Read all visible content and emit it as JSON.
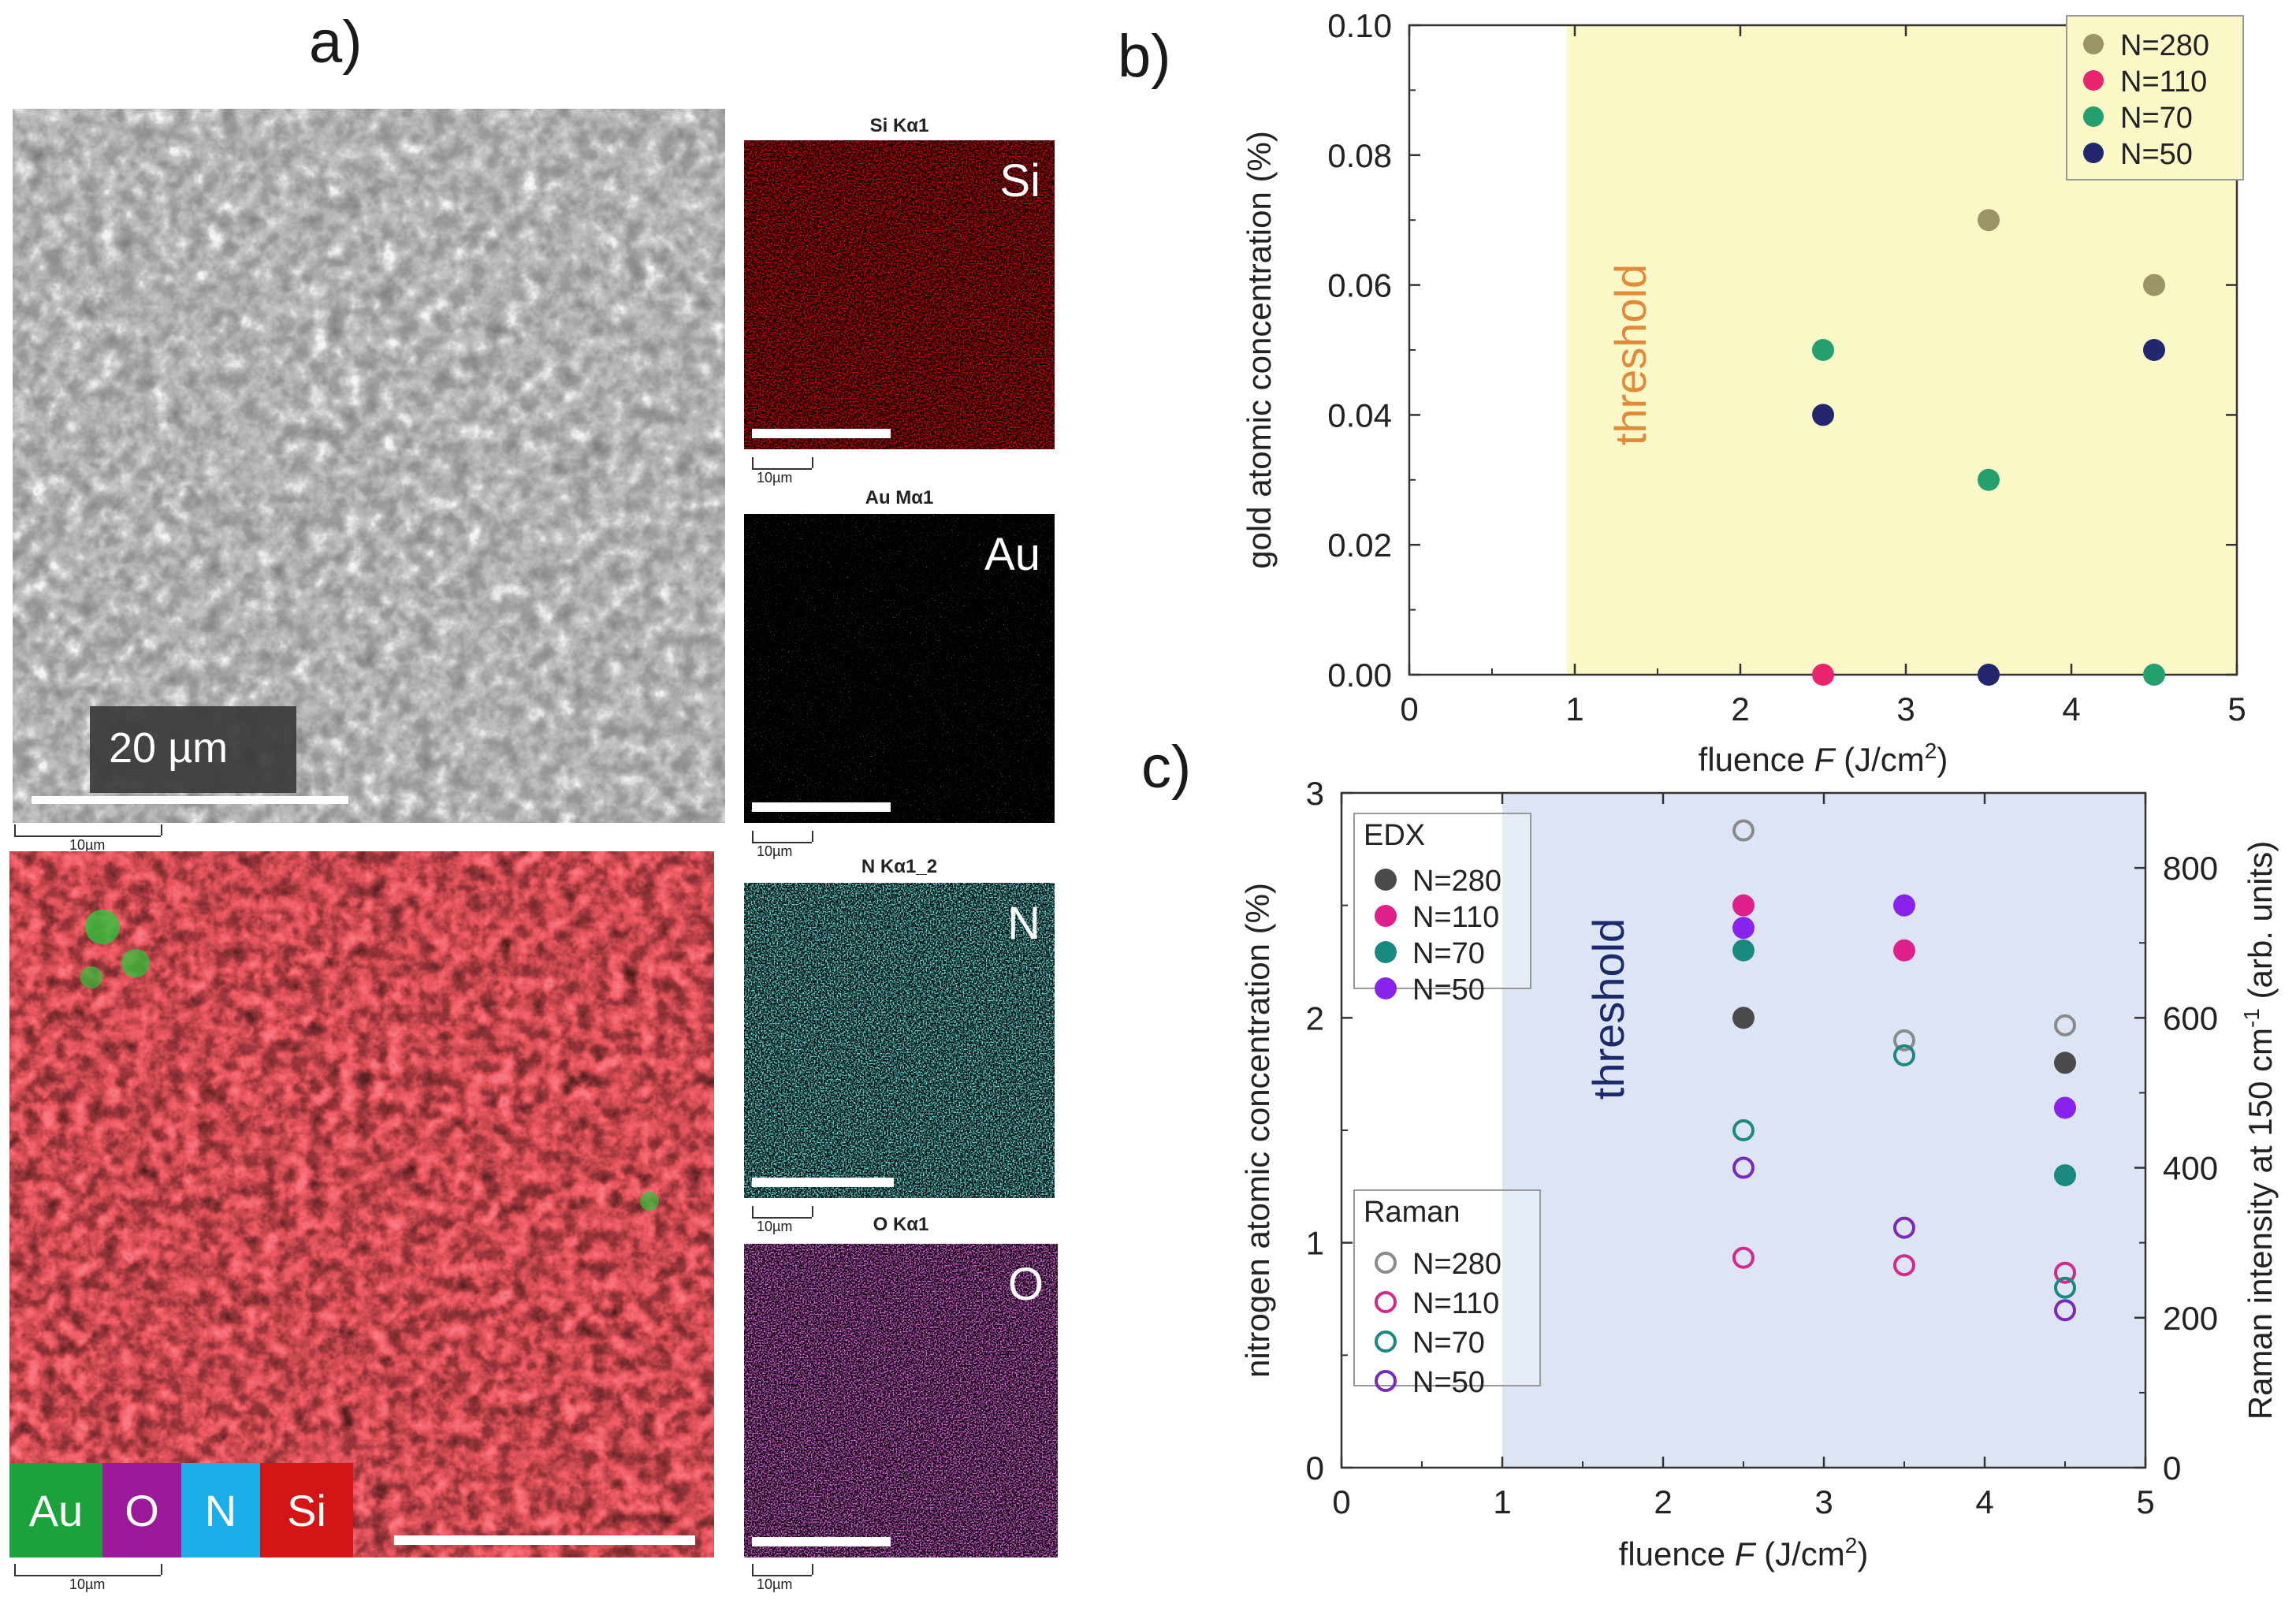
{
  "panels": {
    "a": "a)",
    "b": "b)",
    "c": "c)"
  },
  "sem": {
    "scale_label": "20 µm",
    "small_scale": "10µm"
  },
  "edx_maps": [
    {
      "title": "Si Kα1",
      "element": "Si",
      "color": "#d40000",
      "scale": "10µm"
    },
    {
      "title": "Au Mα1",
      "element": "Au",
      "color": "#22cc22",
      "scale": "10µm"
    },
    {
      "title": "N Kα1_2",
      "element": "N",
      "color": "#22cccc",
      "scale": "10µm"
    },
    {
      "title": "O Kα1",
      "element": "O",
      "color": "#cc22cc",
      "scale": "10µm"
    }
  ],
  "overlay": {
    "small_scale": "10µm",
    "legend": [
      {
        "label": "Au",
        "color": "#1aa33a"
      },
      {
        "label": "O",
        "color": "#9a1a9a"
      },
      {
        "label": "N",
        "color": "#1aaee8"
      },
      {
        "label": "Si",
        "color": "#d41515"
      }
    ]
  },
  "chart_data": [
    {
      "type": "scatter",
      "panel": "b)",
      "xlabel": "fluence F (J/cm²)",
      "xlabel_prefix": "fluence ",
      "xlabel_var": "F",
      "xlabel_unit": " (J/cm",
      "xlabel_sup": "2",
      "xlabel_close": ")",
      "ylabel": "gold atomic concentration (%)",
      "xlim": [
        0,
        5
      ],
      "ylim": [
        0,
        0.1
      ],
      "xticks": [
        "0",
        "1",
        "2",
        "3",
        "4",
        "5"
      ],
      "yticks": [
        "0.00",
        "0.02",
        "0.04",
        "0.06",
        "0.08",
        "0.10"
      ],
      "threshold_label": "threshold",
      "threshold_from": 0.95,
      "threshold_color": "#fbf8c8",
      "legend_position": "top-right",
      "series": [
        {
          "name": "N=280",
          "color": "#9a9466",
          "x": [
            3.5,
            4.5
          ],
          "y": [
            0.07,
            0.06
          ]
        },
        {
          "name": "N=110",
          "color": "#e8256e",
          "x": [
            2.5
          ],
          "y": [
            0.0
          ]
        },
        {
          "name": "N=70",
          "color": "#23a06e",
          "x": [
            2.5,
            3.5,
            4.5
          ],
          "y": [
            0.05,
            0.03,
            0.0
          ]
        },
        {
          "name": "N=50",
          "color": "#23286e",
          "x": [
            2.5,
            3.5,
            4.5
          ],
          "y": [
            0.04,
            0.0,
            0.05
          ]
        }
      ]
    },
    {
      "type": "scatter",
      "panel": "c)",
      "xlabel": "fluence F (J/cm²)",
      "xlabel_prefix": "fluence ",
      "xlabel_var": "F",
      "xlabel_unit": " (J/cm",
      "xlabel_sup": "2",
      "xlabel_close": ")",
      "ylabel": "nitrogen atomic concentration (%)",
      "y2label_prefix": "Raman intensity at 150 cm",
      "y2label_sup": "-1",
      "y2label_suffix": " (arb. units)",
      "xlim": [
        0,
        5
      ],
      "ylim": [
        0,
        3
      ],
      "y2lim": [
        0,
        900
      ],
      "xticks": [
        "0",
        "1",
        "2",
        "3",
        "4",
        "5"
      ],
      "yticks": [
        "0",
        "1",
        "2",
        "3"
      ],
      "y2ticks": [
        "0",
        "200",
        "400",
        "600",
        "800"
      ],
      "threshold_label": "threshold",
      "threshold_from": 1.0,
      "threshold_color": "#dde5f4",
      "legend_position": "left",
      "edx_title": "EDX",
      "raman_title": "Raman",
      "edx_series": [
        {
          "name": "N=280",
          "color": "#4a4a4a",
          "x": [
            2.5,
            4.5
          ],
          "y": [
            2.0,
            1.8
          ]
        },
        {
          "name": "N=110",
          "color": "#e0208a",
          "x": [
            2.5,
            3.5
          ],
          "y": [
            2.5,
            2.3
          ]
        },
        {
          "name": "N=70",
          "color": "#1a8a80",
          "x": [
            2.5,
            4.5
          ],
          "y": [
            2.3,
            1.3
          ]
        },
        {
          "name": "N=50",
          "color": "#8a22ee",
          "x": [
            2.5,
            3.5,
            4.5
          ],
          "y": [
            2.4,
            2.5,
            1.6
          ]
        }
      ],
      "raman_series": [
        {
          "name": "N=280",
          "color": "#8a8a8a",
          "x": [
            2.5,
            3.5,
            4.5
          ],
          "y": [
            850,
            570,
            590
          ]
        },
        {
          "name": "N=110",
          "color": "#d02a8a",
          "x": [
            2.5,
            3.5,
            4.5
          ],
          "y": [
            280,
            270,
            260
          ]
        },
        {
          "name": "N=70",
          "color": "#1a8a80",
          "x": [
            2.5,
            3.5,
            4.5
          ],
          "y": [
            450,
            550,
            240
          ]
        },
        {
          "name": "N=50",
          "color": "#7a2ab8",
          "x": [
            2.5,
            3.5,
            4.5
          ],
          "y": [
            400,
            320,
            210
          ]
        }
      ]
    }
  ]
}
